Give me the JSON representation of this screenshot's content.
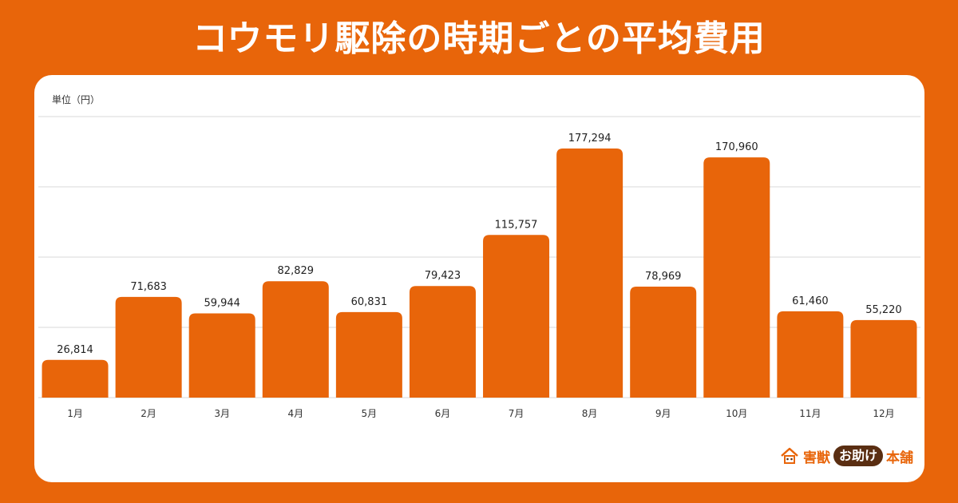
{
  "title": "コウモリ駆除の時期ごとの平均費用",
  "unit_label": "単位（円）",
  "brand": {
    "part1": "害獣",
    "part2": "お助け",
    "part3": "本舗",
    "icon": "house-logo-icon"
  },
  "colors": {
    "background": "#E8650A",
    "bar": "#E8650A",
    "grid": "#d9d9d9",
    "panel": "#ffffff"
  },
  "chart_data": {
    "type": "bar",
    "categories": [
      "1月",
      "2月",
      "3月",
      "4月",
      "5月",
      "6月",
      "7月",
      "8月",
      "9月",
      "10月",
      "11月",
      "12月"
    ],
    "values": [
      26814,
      71683,
      59944,
      82829,
      60831,
      79423,
      115757,
      177294,
      78969,
      170960,
      61460,
      55220
    ],
    "data_labels": [
      "26,814",
      "71,683",
      "59,944",
      "82,829",
      "60,831",
      "79,423",
      "115,757",
      "177,294",
      "78,969",
      "170,960",
      "61,460",
      "55,220"
    ],
    "title": "",
    "xlabel": "",
    "ylabel": "単位（円）",
    "ylim": [
      0,
      200000
    ],
    "grid": true,
    "legend": "none"
  }
}
